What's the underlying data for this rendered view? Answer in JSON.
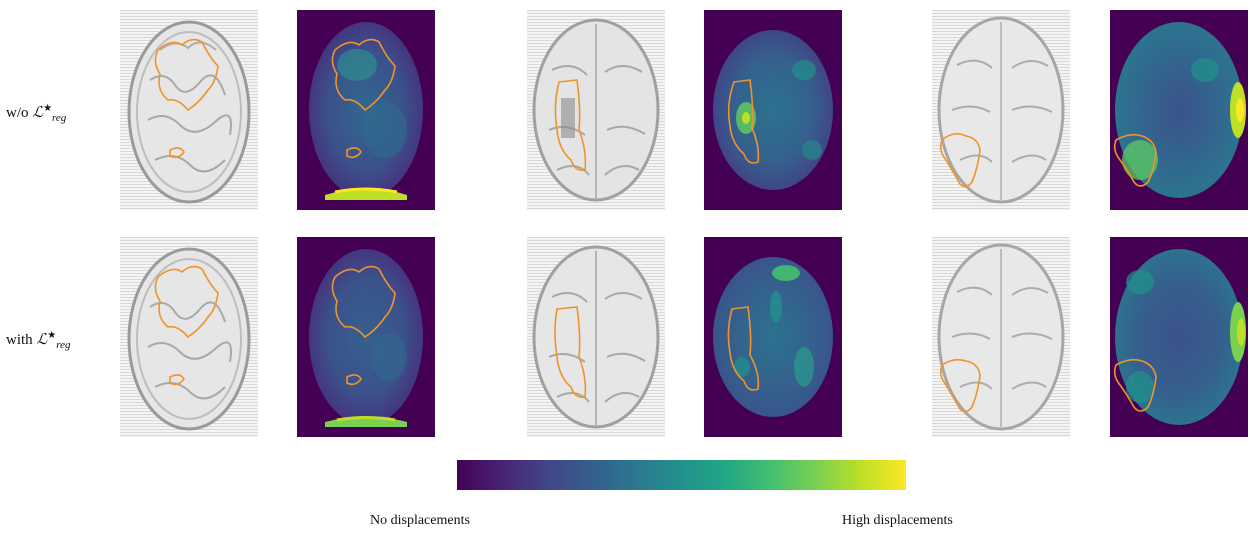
{
  "rows": [
    {
      "prefix": "w/o ",
      "math_base": "ℒ",
      "math_sub": "reg",
      "math_sup": "★"
    },
    {
      "prefix": "with ",
      "math_base": "ℒ",
      "math_sub": "reg",
      "math_sup": "★"
    }
  ],
  "colorbar": {
    "colormap": "viridis",
    "left_label": "No displacements",
    "right_label": "High displacements",
    "colors": [
      "#440154",
      "#3b528b",
      "#21918c",
      "#5ec962",
      "#fde725"
    ]
  },
  "tumor_outline_color": "#f0932b"
}
